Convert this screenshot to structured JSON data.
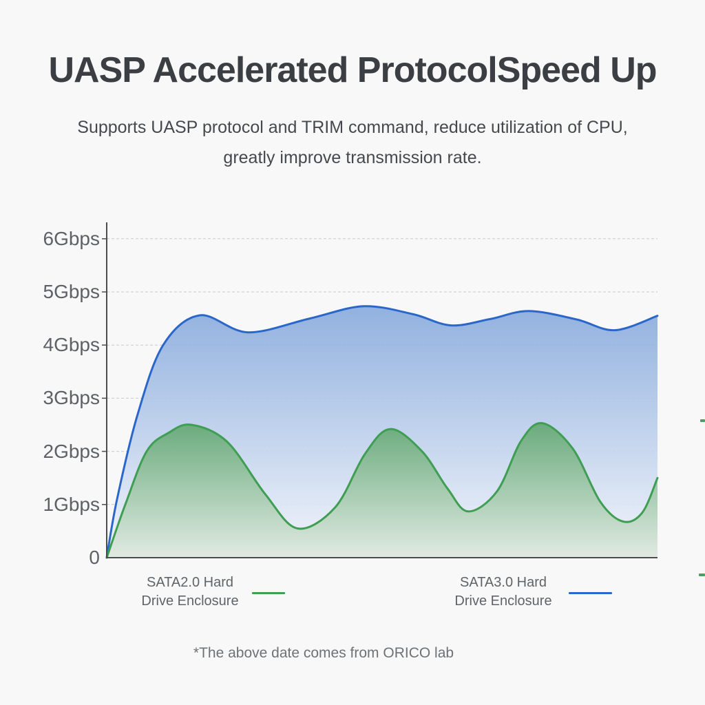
{
  "header": {
    "title": "UASP Accelerated ProtocolSpeed Up",
    "subtitle_line1": "Supports UASP protocol and TRIM command, reduce utilization of CPU,",
    "subtitle_line2": "greatly improve transmission rate."
  },
  "footnote": "*The above date comes from ORICO lab",
  "artifact_color": "#4aa05e",
  "chart_data": {
    "type": "area",
    "title": "",
    "xlabel": "",
    "ylabel": "",
    "x_unit": "relative position 0-800, x axis unlabeled",
    "y_unit": "Gbps",
    "ylim": [
      0,
      6.3
    ],
    "grid": "horizontal dashed lines at each Gbps tick",
    "legend_position": "below chart",
    "axis_color": "#4c4c4c",
    "gridline_color": "#c7c7c7",
    "y_ticks": [
      {
        "label": "6Gbps",
        "value": 6
      },
      {
        "label": "5Gbps",
        "value": 5
      },
      {
        "label": "4Gbps",
        "value": 4
      },
      {
        "label": "3Gbps",
        "value": 3
      },
      {
        "label": "2Gbps",
        "value": 2
      },
      {
        "label": "1Gbps",
        "value": 1
      },
      {
        "label": "0",
        "value": 0
      }
    ],
    "series": [
      {
        "name": "SATA2.0 Hard Drive Enclosure",
        "color": "#3f9e53",
        "fill_top": "#63a873",
        "fill_bottom": "#dfe9e0",
        "fill_opacity": 0.92,
        "summary": "oscillates between about 0.55 and 2.55 Gbps",
        "points": [
          [
            0,
            0
          ],
          [
            27,
            1.0
          ],
          [
            58,
            2.0
          ],
          [
            90,
            2.35
          ],
          [
            123,
            2.5
          ],
          [
            175,
            2.18
          ],
          [
            230,
            1.2
          ],
          [
            277,
            0.55
          ],
          [
            332,
            0.95
          ],
          [
            375,
            1.95
          ],
          [
            412,
            2.42
          ],
          [
            458,
            2.0
          ],
          [
            495,
            1.3
          ],
          [
            525,
            0.87
          ],
          [
            567,
            1.25
          ],
          [
            602,
            2.2
          ],
          [
            633,
            2.53
          ],
          [
            677,
            2.05
          ],
          [
            717,
            1.05
          ],
          [
            750,
            0.68
          ],
          [
            778,
            0.85
          ],
          [
            800,
            1.5
          ]
        ]
      },
      {
        "name": "SATA3.0 Hard Drive Enclosure",
        "color": "#2a67c8",
        "fill_top": "#86a9dc",
        "fill_bottom": "#f2f5fb",
        "fill_opacity": 0.9,
        "summary": "rises quickly then stays between about 4.25 and 4.75 Gbps",
        "points": [
          [
            0,
            0
          ],
          [
            15,
            1.1
          ],
          [
            45,
            2.7
          ],
          [
            82,
            4.0
          ],
          [
            135,
            4.56
          ],
          [
            205,
            4.24
          ],
          [
            295,
            4.5
          ],
          [
            373,
            4.73
          ],
          [
            445,
            4.58
          ],
          [
            500,
            4.37
          ],
          [
            557,
            4.49
          ],
          [
            613,
            4.64
          ],
          [
            683,
            4.48
          ],
          [
            738,
            4.28
          ],
          [
            800,
            4.55
          ]
        ]
      }
    ],
    "legend": [
      {
        "line1": "SATA2.0 Hard",
        "line2": "Drive Enclosure",
        "color": "#3f9e53"
      },
      {
        "line1": "SATA3.0 Hard",
        "line2": "Drive Enclosure",
        "color": "#2a67c8"
      }
    ]
  }
}
